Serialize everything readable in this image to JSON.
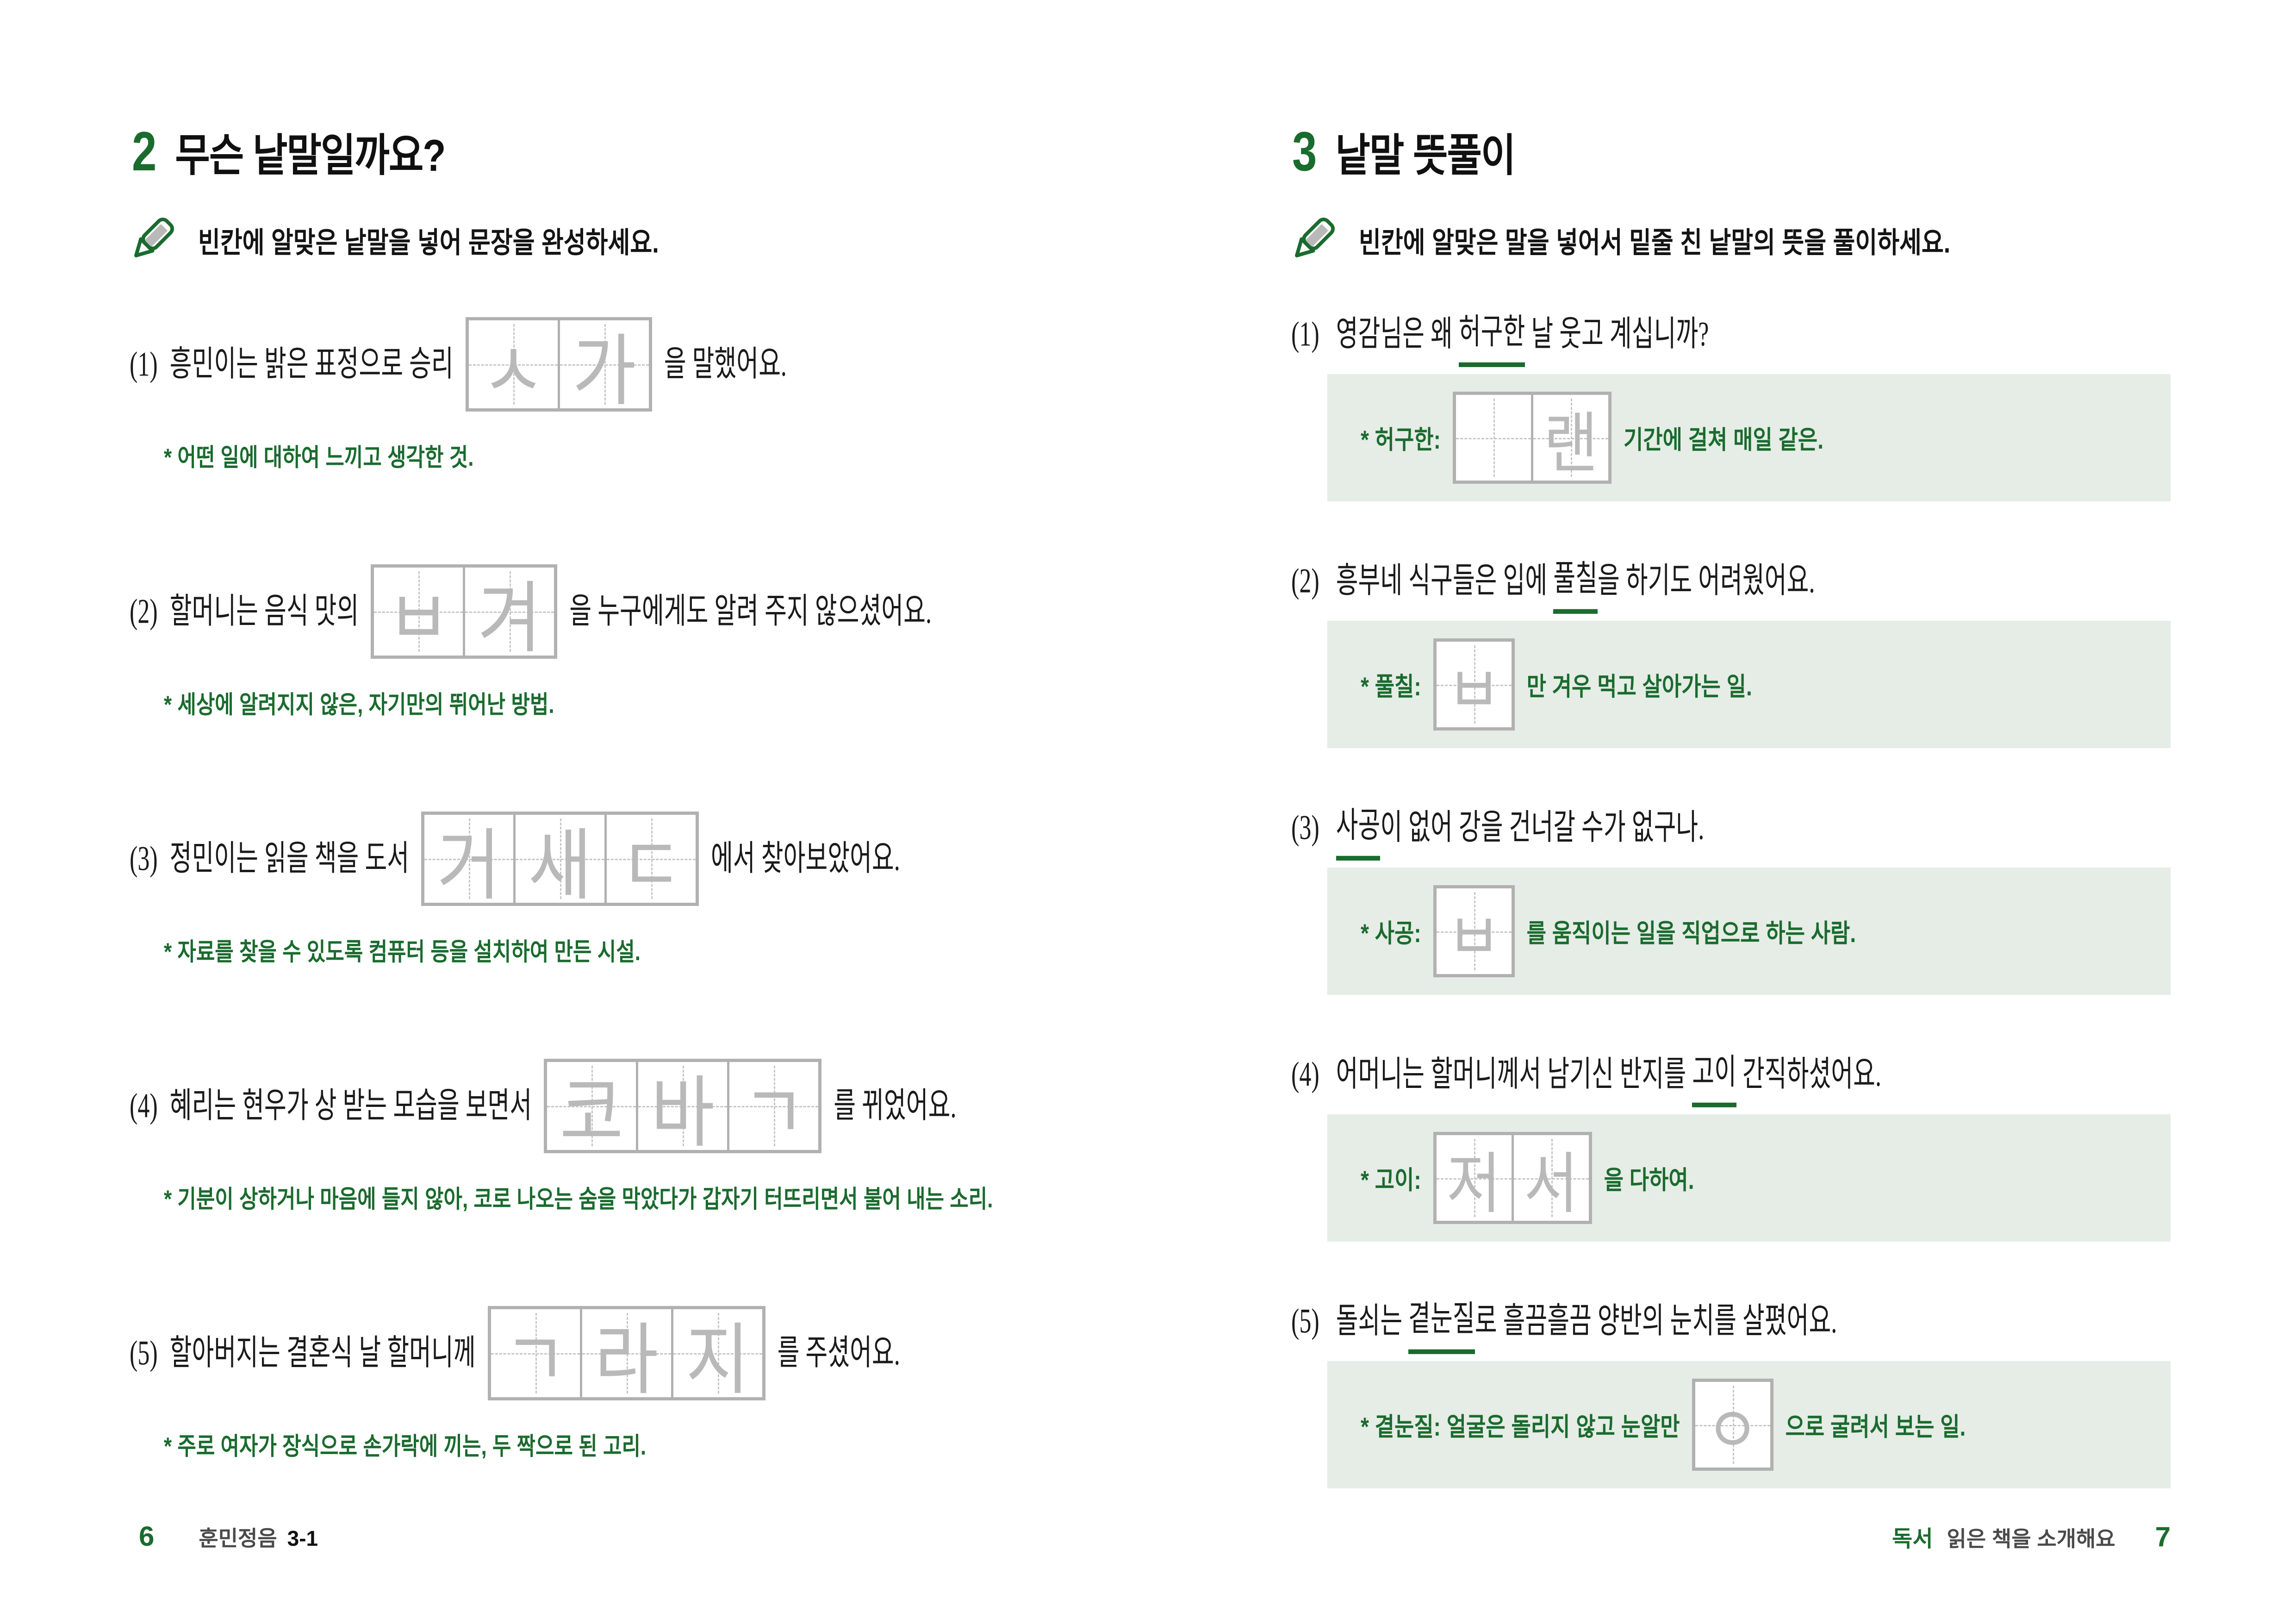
{
  "colors": {
    "green": "#1a6b2e",
    "panel_bg": "#e6ece6",
    "box_border": "#b1b1b1",
    "hint_letter": "#b9b9b9",
    "footer_gray": "#4a4a4a"
  },
  "left": {
    "section_no": "2",
    "section_title": "무슨 낱말일까요?",
    "instruction_icon": "pencil-icon",
    "instruction": "빈칸에 알맞은 낱말을 넣어 문장을 완성하세요.",
    "items": [
      {
        "num": "(1)",
        "pre": "흥민이는 밝은 표정으로 승리",
        "cells": [
          "ㅅ",
          "가"
        ],
        "post": "을 말했어요.",
        "hint": "* 어떤 일에 대하여 느끼고 생각한 것."
      },
      {
        "num": "(2)",
        "pre": "할머니는 음식 맛의",
        "cells": [
          "ㅂ",
          "겨"
        ],
        "post": "을 누구에게도 알려 주지 않으셨어요.",
        "hint": "* 세상에 알려지지 않은, 자기만의 뛰어난 방법."
      },
      {
        "num": "(3)",
        "pre": "정민이는 읽을 책을 도서",
        "cells": [
          "거",
          "새",
          "ㄷ"
        ],
        "post": "에서 찾아보았어요.",
        "hint": "* 자료를 찾을 수 있도록 컴퓨터 등을 설치하여 만든 시설."
      },
      {
        "num": "(4)",
        "pre": "혜리는 현우가 상 받는 모습을 보면서",
        "cells": [
          "코",
          "바",
          "ㄱ"
        ],
        "post": "를 뀌었어요.",
        "hint": "* 기분이 상하거나 마음에 들지 않아, 코로 나오는 숨을 막았다가 갑자기 터뜨리면서 불어 내는 소리."
      },
      {
        "num": "(5)",
        "pre": "할아버지는 결혼식 날 할머니께",
        "cells": [
          "ㄱ",
          "라",
          "지"
        ],
        "post": "를 주셨어요.",
        "hint": "* 주로 여자가 장식으로 손가락에 끼는, 두 짝으로 된 고리."
      }
    ],
    "footer": {
      "page_no": "6",
      "book": "훈민정음",
      "grade": "3-1"
    }
  },
  "right": {
    "section_no": "3",
    "section_title": "낱말 뜻풀이",
    "instruction_icon": "pencil-icon",
    "instruction": "빈칸에 알맞은 말을 넣어서 밑줄 친 낱말의 뜻을 풀이하세요.",
    "items": [
      {
        "num": "(1)",
        "q_pre": "영감님은 왜 ",
        "q_word": "허구한",
        "q_post": " 날 웃고 계십니까?",
        "label": "* 허구한:",
        "cells": [
          "",
          "랜"
        ],
        "suffix": "기간에 걸쳐 매일 같은."
      },
      {
        "num": "(2)",
        "q_pre": "흥부네 식구들은 입에 ",
        "q_word": "풀칠",
        "q_post": "을 하기도 어려웠어요.",
        "label": "* 풀칠:",
        "cells": [
          "ㅂ"
        ],
        "suffix": "만 겨우 먹고 살아가는 일."
      },
      {
        "num": "(3)",
        "q_pre": "",
        "q_word": "사공",
        "q_post": "이 없어 강을 건너갈 수가 없구나.",
        "label": "* 사공:",
        "cells": [
          "ㅂ"
        ],
        "suffix": "를 움직이는 일을 직업으로 하는 사람."
      },
      {
        "num": "(4)",
        "q_pre": "어머니는 할머니께서 남기신 반지를 ",
        "q_word": "고이",
        "q_post": " 간직하셨어요.",
        "label": "* 고이:",
        "cells": [
          "저",
          "서"
        ],
        "suffix": "을 다하여."
      },
      {
        "num": "(5)",
        "q_pre": "돌쇠는 ",
        "q_word": "곁눈질",
        "q_post": "로 흘끔흘끔 양반의 눈치를 살폈어요.",
        "label": "* 곁눈질: 얼굴은 돌리지 않고 눈알만",
        "cells": [
          "ㅇ"
        ],
        "suffix": "으로 굴려서 보는 일."
      }
    ],
    "footer": {
      "section": "독서",
      "title": "읽은 책을 소개해요",
      "page_no": "7"
    }
  }
}
